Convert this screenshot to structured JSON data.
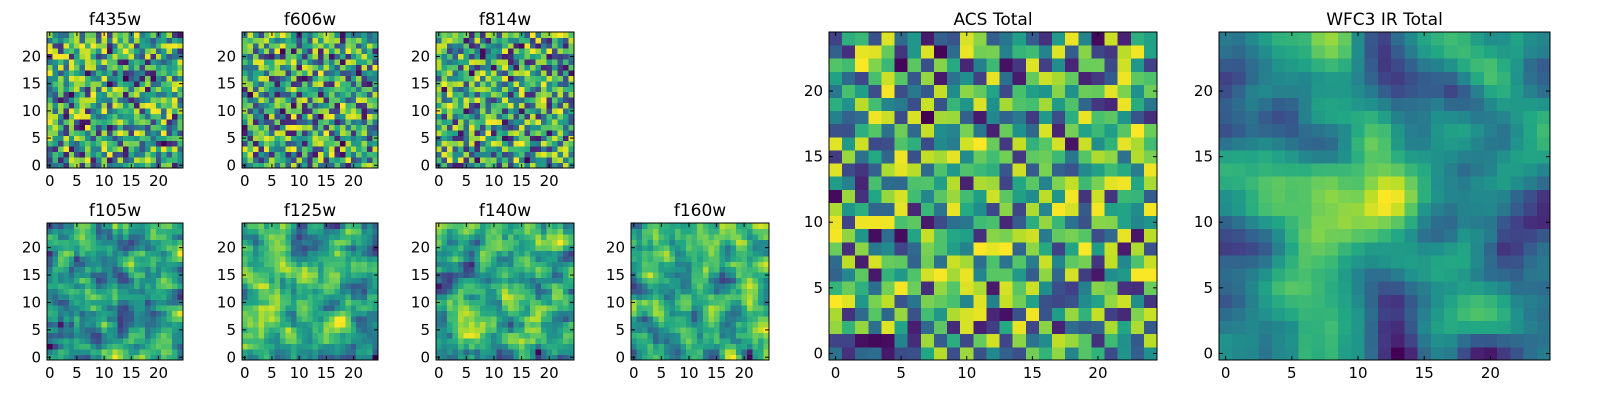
{
  "chart_data": [
    {
      "type": "heatmap",
      "title": "f435w",
      "grid": [
        25,
        25
      ],
      "xticks": [
        "0",
        "5",
        "10",
        "15",
        "20"
      ],
      "yticks": [
        "0",
        "5",
        "10",
        "15",
        "20"
      ],
      "xlim": [
        0,
        25
      ],
      "ylim": [
        0,
        25
      ],
      "colormap": "viridis",
      "seed": 11,
      "smooth": 0
    },
    {
      "type": "heatmap",
      "title": "f606w",
      "grid": [
        25,
        25
      ],
      "xticks": [
        "0",
        "5",
        "10",
        "15",
        "20"
      ],
      "yticks": [
        "0",
        "5",
        "10",
        "15",
        "20"
      ],
      "xlim": [
        0,
        25
      ],
      "ylim": [
        0,
        25
      ],
      "colormap": "viridis",
      "seed": 23,
      "smooth": 0
    },
    {
      "type": "heatmap",
      "title": "f814w",
      "grid": [
        25,
        25
      ],
      "xticks": [
        "0",
        "5",
        "10",
        "15",
        "20"
      ],
      "yticks": [
        "0",
        "5",
        "10",
        "15",
        "20"
      ],
      "xlim": [
        0,
        25
      ],
      "ylim": [
        0,
        25
      ],
      "colormap": "viridis",
      "seed": 37,
      "smooth": 0
    },
    {
      "type": "heatmap",
      "title": "f105w",
      "grid": [
        25,
        25
      ],
      "xticks": [
        "0",
        "5",
        "10",
        "15",
        "20"
      ],
      "yticks": [
        "0",
        "5",
        "10",
        "15",
        "20"
      ],
      "xlim": [
        0,
        25
      ],
      "ylim": [
        0,
        25
      ],
      "colormap": "viridis",
      "seed": 41,
      "smooth": 1
    },
    {
      "type": "heatmap",
      "title": "f125w",
      "grid": [
        25,
        25
      ],
      "xticks": [
        "0",
        "5",
        "10",
        "15",
        "20"
      ],
      "yticks": [
        "0",
        "5",
        "10",
        "15",
        "20"
      ],
      "xlim": [
        0,
        25
      ],
      "ylim": [
        0,
        25
      ],
      "colormap": "viridis",
      "seed": 53,
      "smooth": 1
    },
    {
      "type": "heatmap",
      "title": "f140w",
      "grid": [
        25,
        25
      ],
      "xticks": [
        "0",
        "5",
        "10",
        "15",
        "20"
      ],
      "yticks": [
        "0",
        "5",
        "10",
        "15",
        "20"
      ],
      "xlim": [
        0,
        25
      ],
      "ylim": [
        0,
        25
      ],
      "colormap": "viridis",
      "seed": 67,
      "smooth": 1
    },
    {
      "type": "heatmap",
      "title": "f160w",
      "grid": [
        25,
        25
      ],
      "xticks": [
        "0",
        "5",
        "10",
        "15",
        "20"
      ],
      "yticks": [
        "0",
        "5",
        "10",
        "15",
        "20"
      ],
      "xlim": [
        0,
        25
      ],
      "ylim": [
        0,
        25
      ],
      "colormap": "viridis",
      "seed": 79,
      "smooth": 1
    },
    {
      "type": "heatmap",
      "title": "ACS Total",
      "grid": [
        25,
        25
      ],
      "xticks": [
        "0",
        "5",
        "10",
        "15",
        "20"
      ],
      "yticks": [
        "0",
        "5",
        "10",
        "15",
        "20"
      ],
      "xlim": [
        0,
        25
      ],
      "ylim": [
        0,
        25
      ],
      "colormap": "viridis",
      "seed": 97,
      "smooth": 0
    },
    {
      "type": "heatmap",
      "title": "WFC3 IR Total",
      "grid": [
        25,
        25
      ],
      "xticks": [
        "0",
        "5",
        "10",
        "15",
        "20"
      ],
      "yticks": [
        "0",
        "5",
        "10",
        "15",
        "20"
      ],
      "xlim": [
        0,
        25
      ],
      "ylim": [
        0,
        25
      ],
      "colormap": "viridis",
      "seed": 101,
      "smooth": 2,
      "peak": [
        12,
        12
      ]
    }
  ]
}
